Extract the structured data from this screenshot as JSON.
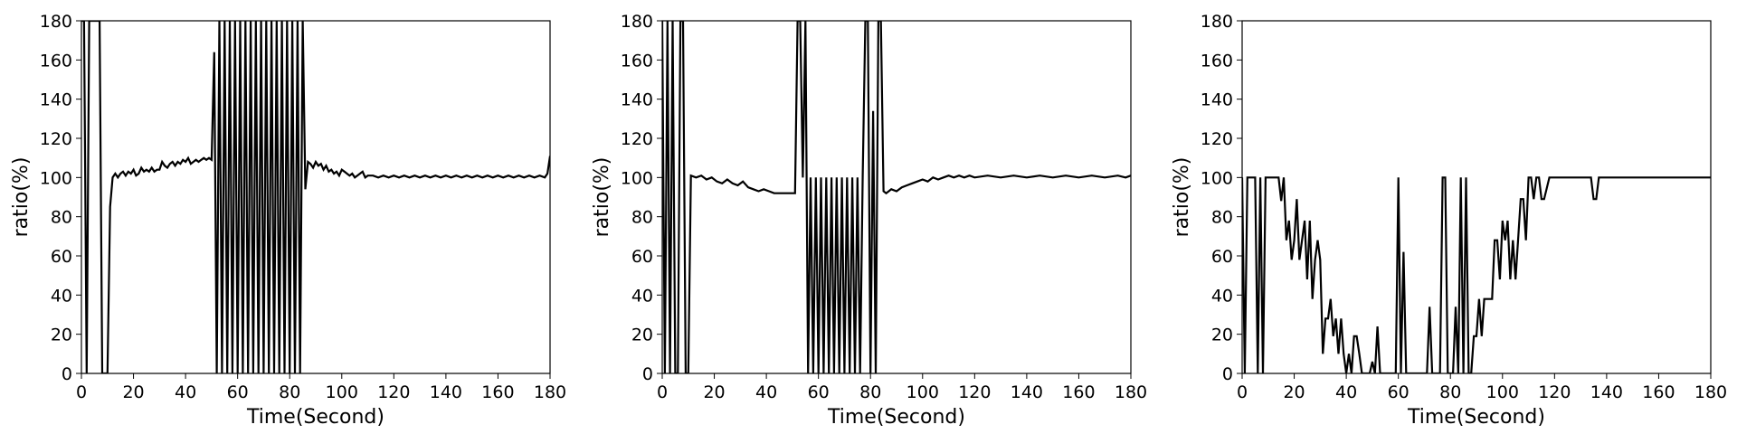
{
  "chart_data": [
    {
      "type": "line",
      "xlabel": "Time(Second)",
      "ylabel": "ratio(%)",
      "xlim": [
        0,
        180
      ],
      "ylim": [
        0,
        180
      ],
      "xticks": [
        "0",
        "20",
        "40",
        "60",
        "80",
        "100",
        "120",
        "140",
        "160",
        "180"
      ],
      "yticks": [
        "0",
        "20",
        "40",
        "60",
        "80",
        "100",
        "120",
        "140",
        "160",
        "180"
      ],
      "grid": false,
      "series": [
        {
          "color": "#000000",
          "x": [
            0,
            1,
            2,
            3,
            4,
            5,
            6,
            7,
            8,
            9,
            10,
            11,
            12,
            13,
            14,
            15,
            16,
            17,
            18,
            19,
            20,
            21,
            22,
            23,
            24,
            25,
            26,
            27,
            28,
            29,
            30,
            31,
            32,
            33,
            34,
            35,
            36,
            37,
            38,
            39,
            40,
            41,
            42,
            43,
            44,
            45,
            46,
            47,
            48,
            49,
            50,
            51,
            52,
            53,
            54,
            55,
            56,
            57,
            58,
            59,
            60,
            61,
            62,
            63,
            64,
            65,
            66,
            67,
            68,
            69,
            70,
            71,
            72,
            73,
            74,
            75,
            76,
            77,
            78,
            79,
            80,
            81,
            82,
            83,
            84,
            85,
            86,
            87,
            88,
            89,
            90,
            91,
            92,
            93,
            94,
            95,
            96,
            97,
            98,
            99,
            100,
            101,
            102,
            103,
            104,
            105,
            106,
            107,
            108,
            109,
            110,
            112,
            114,
            116,
            118,
            120,
            122,
            124,
            126,
            128,
            130,
            132,
            134,
            136,
            138,
            140,
            142,
            144,
            146,
            148,
            150,
            152,
            154,
            156,
            158,
            160,
            162,
            164,
            166,
            168,
            170,
            172,
            174,
            176,
            178,
            179,
            180
          ],
          "y": [
            180,
            180,
            0,
            180,
            180,
            180,
            180,
            180,
            0,
            0,
            0,
            85,
            100,
            102,
            100,
            102,
            103,
            101,
            103,
            102,
            104,
            101,
            102,
            105,
            103,
            104,
            103,
            105,
            103,
            104,
            104,
            108,
            106,
            105,
            107,
            108,
            106,
            108,
            107,
            109,
            108,
            110,
            107,
            108,
            109,
            108,
            109,
            110,
            109,
            110,
            109,
            164,
            0,
            180,
            0,
            180,
            0,
            180,
            0,
            180,
            0,
            180,
            0,
            180,
            0,
            180,
            0,
            180,
            0,
            180,
            0,
            180,
            0,
            180,
            0,
            180,
            0,
            180,
            0,
            180,
            0,
            180,
            0,
            180,
            0,
            180,
            94,
            108,
            107,
            105,
            108,
            106,
            107,
            104,
            106,
            103,
            104,
            102,
            103,
            101,
            104,
            103,
            102,
            101,
            102,
            100,
            101,
            102,
            103,
            100,
            101,
            101,
            100,
            101,
            100,
            101,
            100,
            101,
            100,
            101,
            100,
            101,
            100,
            101,
            100,
            101,
            100,
            101,
            100,
            101,
            100,
            101,
            100,
            101,
            100,
            101,
            100,
            101,
            100,
            101,
            100,
            101,
            100,
            101,
            100,
            102,
            111
          ]
        }
      ]
    },
    {
      "type": "line",
      "xlabel": "Time(Second)",
      "ylabel": "ratio(%)",
      "xlim": [
        0,
        180
      ],
      "ylim": [
        0,
        180
      ],
      "xticks": [
        "0",
        "20",
        "40",
        "60",
        "80",
        "100",
        "120",
        "140",
        "160",
        "180"
      ],
      "yticks": [
        "0",
        "20",
        "40",
        "60",
        "80",
        "100",
        "120",
        "140",
        "160",
        "180"
      ],
      "grid": false,
      "series": [
        {
          "color": "#000000",
          "x": [
            0,
            1,
            2,
            3,
            4,
            5,
            6,
            7,
            8,
            9,
            10,
            11,
            13,
            15,
            17,
            19,
            21,
            23,
            25,
            27,
            29,
            31,
            33,
            35,
            37,
            39,
            41,
            43,
            45,
            47,
            49,
            51,
            52,
            53,
            54,
            55,
            56,
            57,
            58,
            59,
            60,
            61,
            62,
            63,
            64,
            65,
            66,
            67,
            68,
            69,
            70,
            71,
            72,
            73,
            74,
            75,
            76,
            77,
            78,
            79,
            80,
            81,
            82,
            83,
            84,
            85,
            86,
            87,
            88,
            90,
            92,
            94,
            96,
            98,
            100,
            102,
            104,
            106,
            108,
            110,
            112,
            114,
            116,
            118,
            120,
            125,
            130,
            135,
            140,
            145,
            150,
            155,
            160,
            165,
            170,
            175,
            178,
            180
          ],
          "y": [
            180,
            0,
            180,
            0,
            180,
            0,
            0,
            180,
            180,
            0,
            0,
            101,
            100,
            101,
            99,
            100,
            98,
            97,
            99,
            97,
            96,
            98,
            95,
            94,
            93,
            94,
            93,
            92,
            92,
            92,
            92,
            92,
            180,
            180,
            100,
            180,
            0,
            100,
            0,
            100,
            0,
            100,
            0,
            100,
            0,
            100,
            0,
            100,
            0,
            100,
            0,
            100,
            0,
            100,
            0,
            100,
            0,
            101,
            180,
            180,
            0,
            134,
            0,
            180,
            180,
            93,
            92,
            93,
            94,
            93,
            95,
            96,
            97,
            98,
            99,
            98,
            100,
            99,
            100,
            101,
            100,
            101,
            100,
            101,
            100,
            101,
            100,
            101,
            100,
            101,
            100,
            101,
            100,
            101,
            100,
            101,
            100,
            101
          ]
        }
      ]
    },
    {
      "type": "line",
      "xlabel": "Time(Second)",
      "ylabel": "ratio(%)",
      "xlim": [
        0,
        180
      ],
      "ylim": [
        0,
        180
      ],
      "xticks": [
        "0",
        "20",
        "40",
        "60",
        "80",
        "100",
        "120",
        "140",
        "160",
        "180"
      ],
      "yticks": [
        "0",
        "20",
        "40",
        "60",
        "80",
        "100",
        "120",
        "140",
        "160",
        "180"
      ],
      "grid": false,
      "series": [
        {
          "color": "#000000",
          "x": [
            0,
            1,
            2,
            3,
            4,
            5,
            6,
            7,
            8,
            9,
            10,
            11,
            12,
            13,
            14,
            15,
            16,
            17,
            18,
            19,
            20,
            21,
            22,
            23,
            24,
            25,
            26,
            27,
            28,
            29,
            30,
            31,
            32,
            33,
            34,
            35,
            36,
            37,
            38,
            39,
            40,
            41,
            42,
            43,
            44,
            45,
            46,
            47,
            48,
            49,
            50,
            51,
            52,
            53,
            54,
            55,
            56,
            57,
            58,
            59,
            60,
            61,
            62,
            63,
            64,
            65,
            66,
            67,
            68,
            69,
            70,
            71,
            72,
            73,
            74,
            75,
            76,
            77,
            78,
            79,
            80,
            81,
            82,
            83,
            84,
            85,
            86,
            87,
            88,
            89,
            90,
            91,
            92,
            93,
            94,
            95,
            96,
            97,
            98,
            99,
            100,
            101,
            102,
            103,
            104,
            105,
            106,
            107,
            108,
            109,
            110,
            111,
            112,
            113,
            114,
            115,
            116,
            118,
            120,
            122,
            124,
            126,
            128,
            130,
            132,
            134,
            135,
            136,
            137,
            138,
            140,
            145,
            150,
            155,
            160,
            165,
            170,
            175,
            180
          ],
          "y": [
            100,
            0,
            100,
            100,
            100,
            100,
            0,
            100,
            0,
            100,
            100,
            100,
            100,
            100,
            100,
            88,
            100,
            68,
            78,
            58,
            68,
            89,
            58,
            68,
            78,
            48,
            78,
            38,
            58,
            68,
            58,
            10,
            28,
            28,
            38,
            19,
            28,
            10,
            28,
            10,
            0,
            10,
            0,
            19,
            19,
            10,
            0,
            0,
            0,
            0,
            6,
            0,
            24,
            0,
            0,
            0,
            0,
            0,
            0,
            0,
            100,
            0,
            62,
            0,
            0,
            0,
            0,
            0,
            0,
            0,
            0,
            0,
            34,
            0,
            0,
            0,
            0,
            100,
            100,
            0,
            0,
            0,
            34,
            0,
            100,
            0,
            100,
            0,
            0,
            19,
            19,
            38,
            19,
            38,
            38,
            38,
            38,
            68,
            68,
            48,
            78,
            68,
            78,
            48,
            68,
            48,
            68,
            89,
            89,
            68,
            100,
            100,
            89,
            100,
            100,
            89,
            89,
            100,
            100,
            100,
            100,
            100,
            100,
            100,
            100,
            100,
            89,
            89,
            100,
            100,
            100,
            100,
            100,
            100,
            100,
            100,
            100,
            100,
            100
          ]
        }
      ]
    }
  ]
}
